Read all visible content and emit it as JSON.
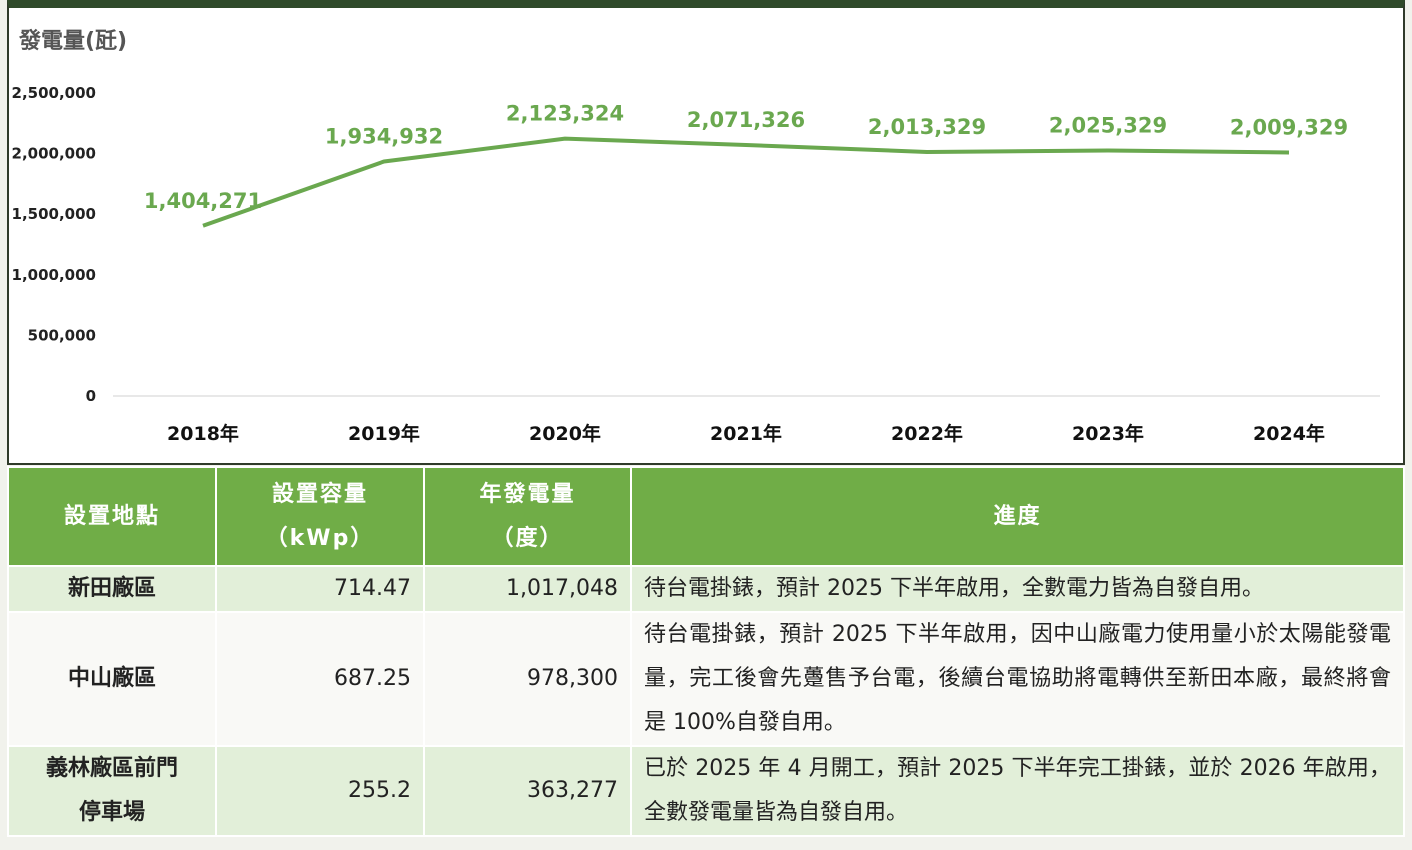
{
  "chart_data": {
    "type": "line",
    "y_label": "發電量(瓩)",
    "categories": [
      "2018年",
      "2019年",
      "2020年",
      "2021年",
      "2022年",
      "2023年",
      "2024年"
    ],
    "values": [
      1404271,
      1934932,
      2123324,
      2071326,
      2013329,
      2025329,
      2009329
    ],
    "value_labels": [
      "1,404,271",
      "1,934,932",
      "2,123,324",
      "2,071,326",
      "2,013,329",
      "2,025,329",
      "2,009,329"
    ],
    "color": "#6aa84f",
    "ylim": [
      0,
      2500000
    ],
    "yticks": [
      0,
      {
        "value": 500000,
        "label": "500,000"
      },
      {
        "value": 1000000,
        "label": "1,000,000"
      },
      {
        "value": 1500000,
        "label": "1,500,000"
      },
      {
        "value": 2000000,
        "label": "2,000,000"
      },
      {
        "value": 2500000,
        "label": "2,500,000"
      }
    ],
    "grid": false
  },
  "table": {
    "header": [
      [
        "設置地點"
      ],
      [
        "設置容量",
        "（kWp）"
      ],
      [
        "年發電量",
        "（度）"
      ],
      [
        "進度"
      ]
    ],
    "rows": [
      [
        "新田廠區",
        "714.47",
        "1,017,048",
        "待台電掛錶，預計 2025 下半年啟用，全數電力皆為自發自用。"
      ],
      [
        "中山廠區",
        "687.25",
        "978,300",
        "待台電掛錶，預計 2025 下半年啟用，因中山廠電力使用量小於太陽能發電量，完工後會先躉售予台電，後續台電協助將電轉供至新田本廠，最終將會是 100%自發自用。"
      ],
      [
        "義林廠區前門停車場",
        "255.2",
        "363,277",
        "已於 2025 年 4 月開工，預計 2025 下半年完工掛錶，並於 2026 年啟用，全數發電量皆為自發自用。"
      ]
    ]
  }
}
